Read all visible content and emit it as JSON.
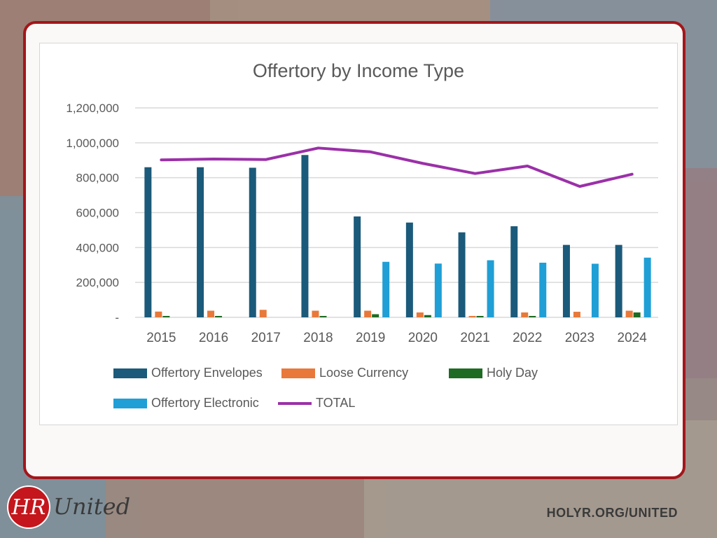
{
  "brand": {
    "logo_initials": "HR",
    "logo_word": "United",
    "site_url": "HOLYR.ORG/UNITED"
  },
  "colors": {
    "card_border": "#a3161b",
    "envelopes": "#1b5a7a",
    "loose": "#e8793a",
    "holy_day": "#1e6b24",
    "electronic": "#1f9fd6",
    "total": "#9b30a8"
  },
  "chart_data": {
    "type": "bar",
    "title": "Offertory by Income Type",
    "categories": [
      "2015",
      "2016",
      "2017",
      "2018",
      "2019",
      "2020",
      "2021",
      "2022",
      "2023",
      "2024"
    ],
    "ylim": [
      0,
      1200000
    ],
    "yticks": [
      "-",
      "200,000",
      "400,000",
      "600,000",
      "800,000",
      "1,000,000",
      "1,200,000"
    ],
    "ytick_values": [
      0,
      200000,
      400000,
      600000,
      800000,
      1000000,
      1200000
    ],
    "grid": true,
    "legend_position": "bottom",
    "series": [
      {
        "name": "Offertory Envelopes",
        "kind": "bar",
        "color": "#1b5a7a",
        "values": [
          860000,
          860000,
          857000,
          930000,
          578000,
          543000,
          487000,
          522000,
          415000,
          415000
        ]
      },
      {
        "name": "Loose Currency",
        "kind": "bar",
        "color": "#e8793a",
        "values": [
          33000,
          38000,
          43000,
          38000,
          38000,
          28000,
          8000,
          28000,
          32000,
          38000
        ]
      },
      {
        "name": "Holy Day",
        "kind": "bar",
        "color": "#1e6b24",
        "values": [
          8000,
          8000,
          0,
          8000,
          18000,
          13000,
          8000,
          8000,
          0,
          28000
        ]
      },
      {
        "name": "Offertory Electronic",
        "kind": "bar",
        "color": "#1f9fd6",
        "values": [
          0,
          0,
          0,
          0,
          318000,
          308000,
          327000,
          313000,
          307000,
          342000
        ]
      },
      {
        "name": "TOTAL",
        "kind": "line",
        "color": "#9b30a8",
        "values": [
          902000,
          907000,
          904000,
          970000,
          948000,
          882000,
          824000,
          867000,
          750000,
          820000
        ]
      }
    ]
  }
}
